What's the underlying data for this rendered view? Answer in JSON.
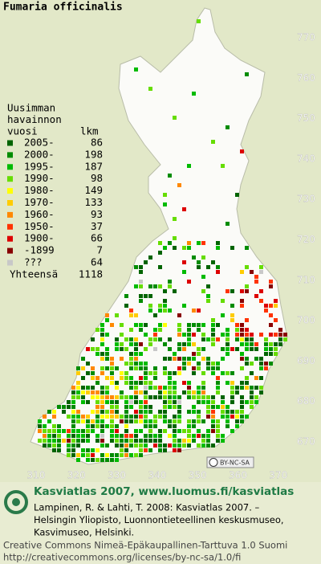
{
  "title": "Fumaria officinalis",
  "map": {
    "y_labels": [
      770,
      760,
      750,
      740,
      730,
      720,
      710,
      700,
      690,
      680,
      670
    ],
    "x_labels": [
      310,
      320,
      330,
      340,
      350,
      360,
      370
    ]
  },
  "legend": {
    "heading": [
      "Uusimman",
      "havainnon",
      "vuosi"
    ],
    "count_header": "lkm",
    "rows": [
      {
        "label": "2005-",
        "count": 86,
        "color": "#006400"
      },
      {
        "label": "2000-",
        "count": 198,
        "color": "#008c00"
      },
      {
        "label": "1995-",
        "count": 187,
        "color": "#00bb00"
      },
      {
        "label": "1990-",
        "count": 98,
        "color": "#66dd00"
      },
      {
        "label": "1980-",
        "count": 149,
        "color": "#ffff00"
      },
      {
        "label": "1970-",
        "count": 133,
        "color": "#ffcc00"
      },
      {
        "label": "1960-",
        "count": 93,
        "color": "#ff8800"
      },
      {
        "label": "1950-",
        "count": 37,
        "color": "#ff3300"
      },
      {
        "label": "1900-",
        "count": 66,
        "color": "#dd0000"
      },
      {
        "label": "-1899",
        "count": 7,
        "color": "#880000"
      },
      {
        "label": "???",
        "count": 64,
        "color": "#c8c8c8"
      }
    ],
    "total_label": "Yhteensä",
    "total": 1118
  },
  "badge": "BY-NC-SA",
  "footer": {
    "headline": "Kasviatlas 2007, www.luomus.fi/kasviatlas",
    "citation": [
      "Lampinen, R. & Lahti, T. 2008: Kasviatlas 2007. –",
      "Helsingin Yliopisto, Luonnontieteellinen keskusmuseo,",
      "Kasvimuseo, Helsinki."
    ],
    "license": [
      "Creative Commons Nimeä-Epäkaupallinen-Tarttuva 1.0 Suomi",
      "http://creativecommons.org/licenses/by-nc-sa/1.0/fi"
    ]
  }
}
